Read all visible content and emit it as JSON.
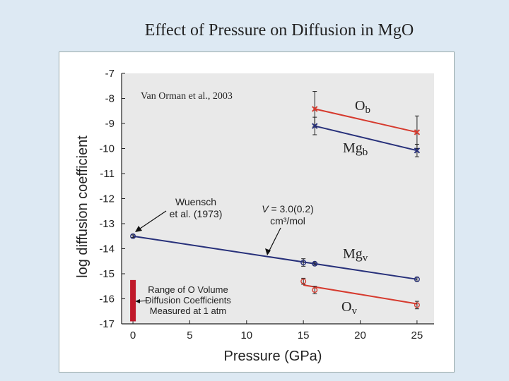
{
  "slide": {
    "title": "Effect of Pressure on Diffusion in MgO"
  },
  "colors": {
    "mg": "#27307a",
    "o": "#d63a2e",
    "bar": "#c0192a",
    "plot_bg": "#e9e9e9"
  },
  "chart_data": {
    "type": "scatter",
    "title": "Effect of Pressure on Diffusion in MgO",
    "xlabel": "Pressure (GPa)",
    "ylabel": "log diffusion coefficient",
    "xlim": [
      -1,
      26.5
    ],
    "ylim": [
      -17,
      -7
    ],
    "xticks": [
      0,
      5,
      10,
      15,
      20,
      25
    ],
    "yticks": [
      -7,
      -8,
      -9,
      -10,
      -11,
      -12,
      -13,
      -14,
      -15,
      -16,
      -17
    ],
    "series": [
      {
        "name": "O_b",
        "label_main": "O",
        "label_sub": "b",
        "color": "#d63a2e",
        "marker": "x",
        "points": [
          {
            "x": 16,
            "y": -8.42,
            "err": 0.7
          },
          {
            "x": 25,
            "y": -9.35,
            "err": 0.65
          }
        ],
        "fit": [
          [
            16,
            -8.42
          ],
          [
            25,
            -9.35
          ]
        ]
      },
      {
        "name": "Mg_b",
        "label_main": "Mg",
        "label_sub": "b",
        "color": "#27307a",
        "marker": "x",
        "points": [
          {
            "x": 16,
            "y": -9.1,
            "err": 0.35
          },
          {
            "x": 25,
            "y": -10.08,
            "err": 0.25
          }
        ],
        "fit": [
          [
            16,
            -9.1
          ],
          [
            25,
            -10.08
          ]
        ]
      },
      {
        "name": "Mg_v",
        "label_main": "Mg",
        "label_sub": "v",
        "color": "#27307a",
        "marker": "o",
        "points": [
          {
            "x": 0,
            "y": -13.5,
            "err": 0.05
          },
          {
            "x": 15,
            "y": -14.55,
            "err": 0.15
          },
          {
            "x": 16,
            "y": -14.6,
            "err": 0.05
          },
          {
            "x": 25,
            "y": -15.22,
            "err": 0.08
          }
        ],
        "fit": [
          [
            0,
            -13.5
          ],
          [
            25,
            -15.22
          ]
        ]
      },
      {
        "name": "O_v",
        "label_main": "O",
        "label_sub": "v",
        "color": "#d63a2e",
        "marker": "o",
        "points": [
          {
            "x": 15,
            "y": -15.3,
            "err": 0.12
          },
          {
            "x": 16,
            "y": -15.65,
            "err": 0.15
          },
          {
            "x": 25,
            "y": -16.25,
            "err": 0.15
          }
        ],
        "fit": [
          [
            15,
            -15.45
          ],
          [
            25,
            -16.2
          ]
        ]
      }
    ],
    "range_bar": {
      "x": 0,
      "y_low": -16.9,
      "y_high": -15.25
    },
    "annotations": {
      "source": "Van Orman et al., 2003",
      "wuensch": [
        "Wuensch",
        "et al. (1973)"
      ],
      "volume_main": "V",
      "volume_rest": " = 3.0(0.2)",
      "volume_unit": "cm³/mol",
      "range_text": [
        "Range of O Volume",
        "Diffusion Coefficients",
        "Measured at 1 atm"
      ]
    }
  }
}
